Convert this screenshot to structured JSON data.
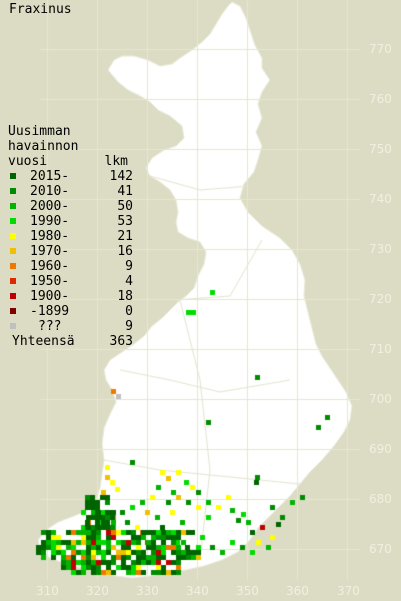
{
  "title": "Fraxinus",
  "legend": {
    "header_line1": "Uusimman",
    "header_line2": "havainnon",
    "header_col1": "vuosi",
    "header_col2": "lkm",
    "items": [
      {
        "label": "2015-",
        "count": "142",
        "color": "#006400"
      },
      {
        "label": "2010-",
        "count": "41",
        "color": "#008c00"
      },
      {
        "label": "2000-",
        "count": "50",
        "color": "#00b400"
      },
      {
        "label": "1990-",
        "count": "53",
        "color": "#00dc00"
      },
      {
        "label": "1980-",
        "count": "21",
        "color": "#ffff00"
      },
      {
        "label": "1970-",
        "count": "16",
        "color": "#f0c000"
      },
      {
        "label": "1960-",
        "count": "9",
        "color": "#f07800"
      },
      {
        "label": "1950-",
        "count": "4",
        "color": "#e02800"
      },
      {
        "label": "1900-",
        "count": "18",
        "color": "#c00000"
      },
      {
        "label": "-1899",
        "count": "0",
        "color": "#800000"
      },
      {
        "label": "???",
        "count": "9",
        "color": "#c0c0c0"
      }
    ],
    "total_label": "Yhteensä",
    "total_count": "363"
  },
  "axes": {
    "x_ticks": [
      "310",
      "320",
      "330",
      "340",
      "350",
      "360",
      "370"
    ],
    "y_ticks": [
      "770",
      "760",
      "750",
      "740",
      "730",
      "720",
      "710",
      "700",
      "690",
      "680",
      "670"
    ]
  },
  "colors": {
    "background": "#dcdcc4",
    "land": "#ffffff",
    "gridline": "#e6e6d2",
    "tick_text": "#f0f0e0"
  }
}
